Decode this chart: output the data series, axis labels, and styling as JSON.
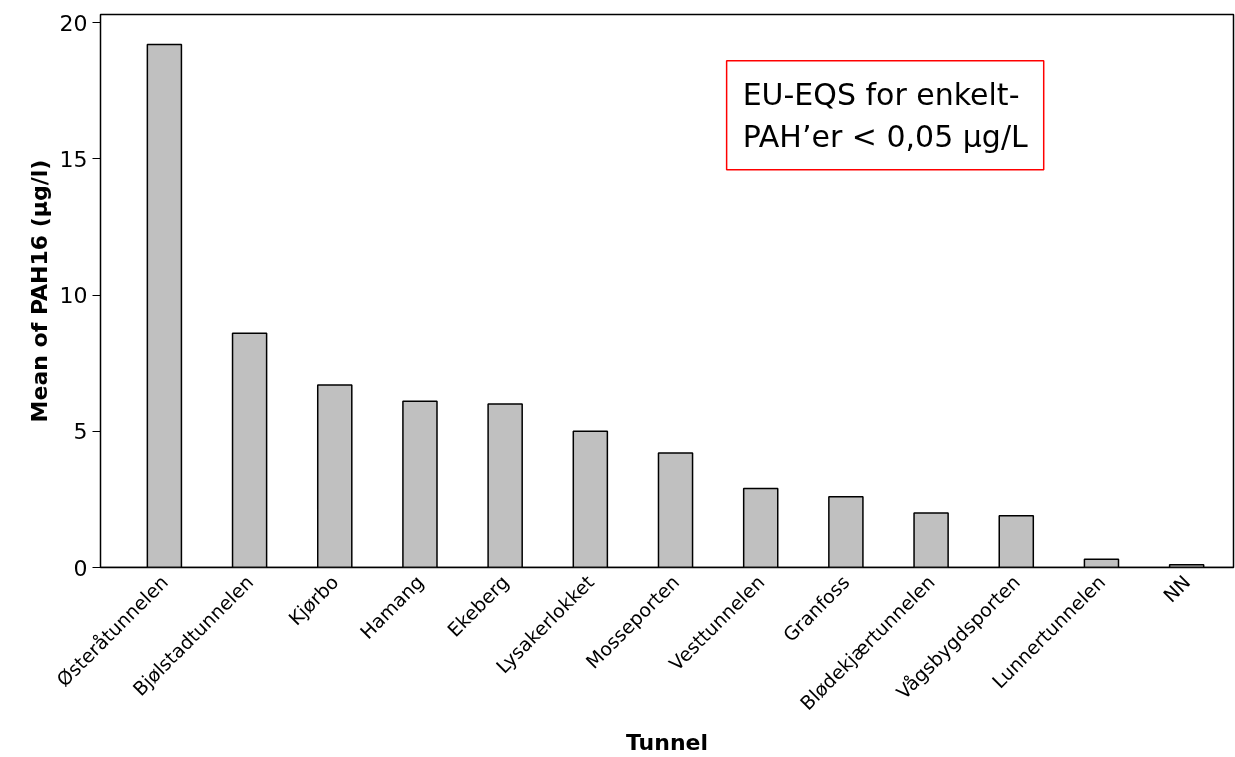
{
  "chart_data": {
    "type": "bar",
    "xlabel": "Tunnel",
    "ylabel": "Mean of PAH16 (µg/l)",
    "categories": [
      "Østeråtunnelen",
      "Bjølstadtunnelen",
      "Kjørbo",
      "Hamang",
      "Ekeberg",
      "Lysakerlokket",
      "Mosseporten",
      "Vesttunnelen",
      "Granfoss",
      "Blødekjærtunnelen",
      "Vågsbygdsporten",
      "Lunnertunnelen",
      "NN"
    ],
    "values": [
      19.2,
      8.6,
      6.7,
      6.1,
      6.0,
      5.0,
      4.2,
      2.9,
      2.6,
      2.0,
      1.9,
      0.3,
      0.1
    ],
    "color": "#c0c0c0",
    "ylim": [
      0,
      20.3
    ],
    "yticks": [
      0,
      5,
      10,
      15,
      20
    ],
    "grid": false,
    "annotations": [
      "EU-EQS for enkelt-\nPAH’er < 0,05 µg/L"
    ]
  }
}
